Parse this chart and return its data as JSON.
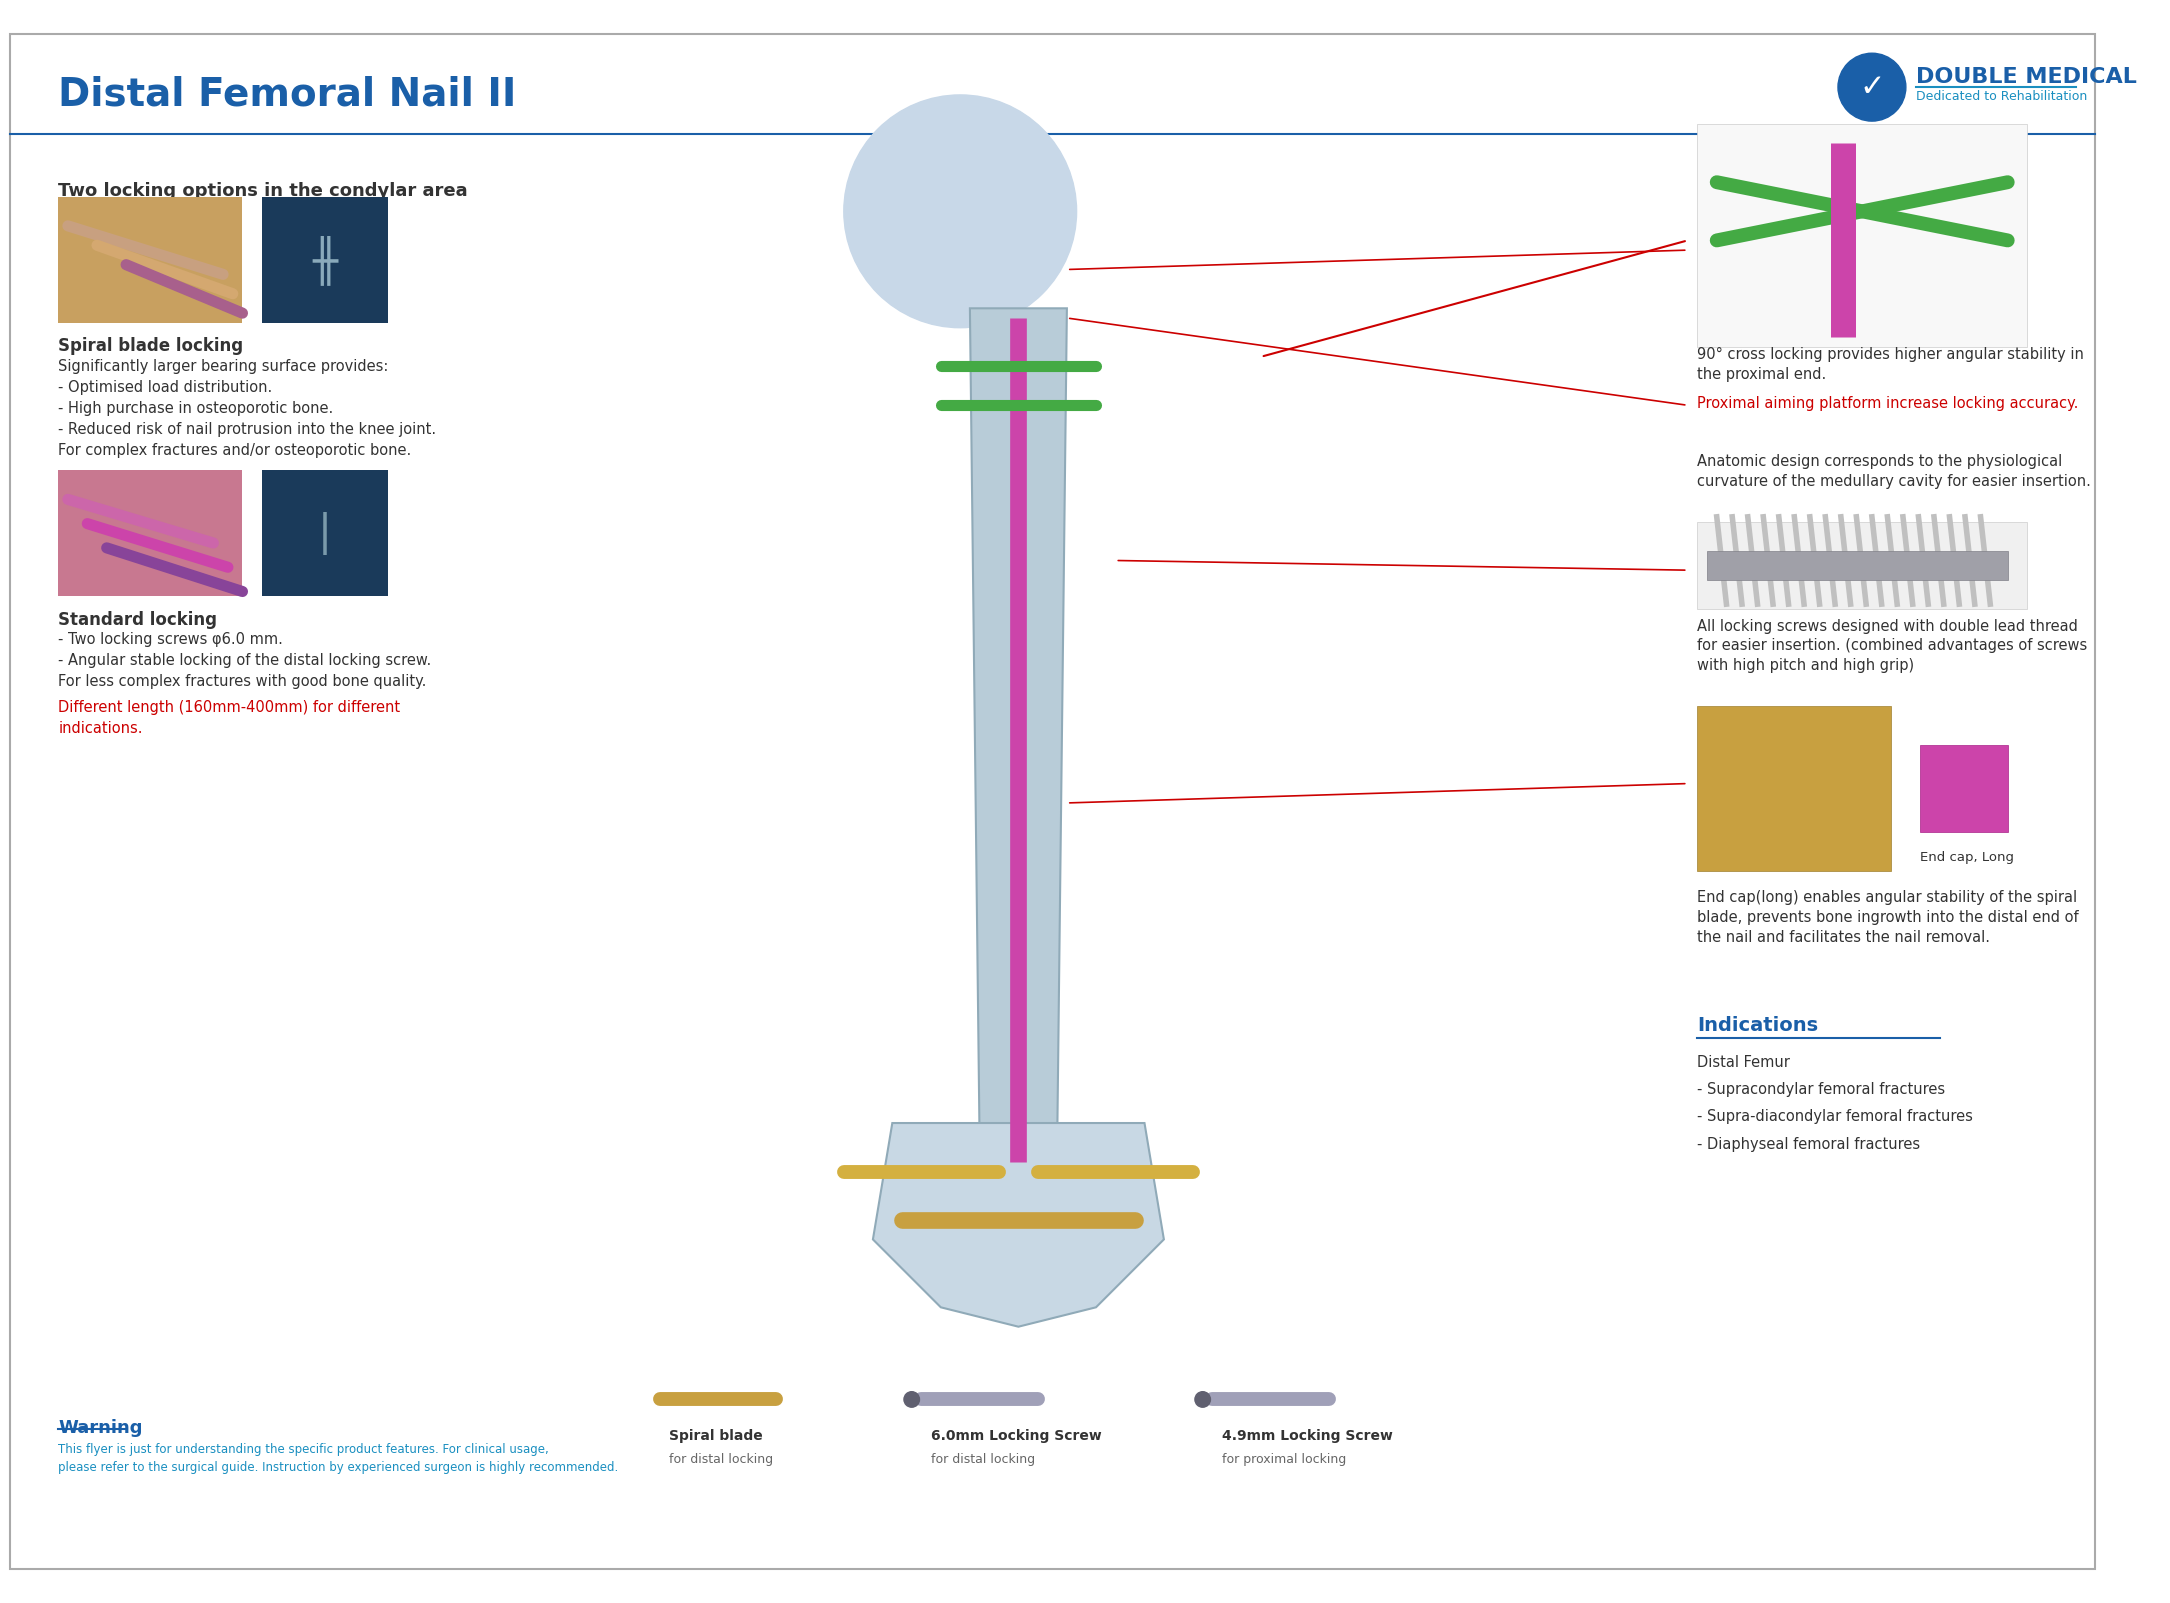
{
  "title": "Distal Femoral Nail II",
  "title_color": "#1a5fa8",
  "title_fontsize": 28,
  "bg_color": "#ffffff",
  "border_color": "#aaaaaa",
  "company_name": "DOUBLE MEDICAL",
  "company_tagline": "Dedicated to Rehabilitation",
  "company_color": "#1a5fa8",
  "header_line_color": "#1a5fa8",
  "warning_title": "Warning",
  "warning_color": "#1a5fa8",
  "warning_text": "This flyer is just for understanding the specific product features. For clinical usage,\nplease refer to the surgical guide. Instruction by experienced surgeon is highly recommended.",
  "warning_text_color": "#1a8fc0",
  "left_section": {
    "heading1": "Two locking options in the condylar area",
    "heading1_bold": true,
    "heading1_fontsize": 13,
    "heading2": "Spiral blade locking",
    "heading2_bold": true,
    "spiral_text": "Significantly larger bearing surface provides:\n- Optimised load distribution.\n- High purchase in osteoporotic bone.\n- Reduced risk of nail protrusion into the knee joint.\nFor complex fractures and/or osteoporotic bone.",
    "heading3": "Standard locking",
    "heading3_bold": true,
    "standard_text": "- Two locking screws φ6.0 mm.\n- Angular stable locking of the distal locking screw.\nFor less complex fractures with good bone quality.",
    "length_text": "Different length (160mm-400mm) for different\nindications.",
    "length_text_color": "#cc0000"
  },
  "right_section": {
    "text1": "90° cross locking provides higher angular stability in\nthe proximal end.",
    "text2": "Proximal aiming platform increase locking accuracy.",
    "text2_color": "#cc0000",
    "text3": "Anatomic design corresponds to the physiological\ncurvature of the medullary cavity for easier insertion.",
    "text4": "All locking screws designed with double lead thread\nfor easier insertion. (combined advantages of screws\nwith high pitch and high grip)",
    "text5": "End cap(long) enables angular stability of the spiral\nblade, prevents bone ingrowth into the distal end of\nthe nail and facilitates the nail removal.",
    "end_cap_label": "End cap, Long",
    "indications_title": "Indications",
    "indications_title_color": "#1a5fa8",
    "indications_list": [
      "Distal Femur",
      "- Supracondylar femoral fractures",
      "- Supra-diacondylar femoral fractures",
      "- Diaphyseal femoral fractures"
    ]
  },
  "bottom_labels": [
    {
      "name": "Spiral blade",
      "sub": "for distal locking"
    },
    {
      "name": "6.0mm Locking Screw",
      "sub": "for distal locking"
    },
    {
      "name": "4.9mm Locking Screw",
      "sub": "for proximal locking"
    }
  ],
  "accent_color": "#1a8fc0",
  "red_color": "#cc0000",
  "text_color": "#333333",
  "small_text_color": "#666666",
  "line_color": "#cc0000"
}
